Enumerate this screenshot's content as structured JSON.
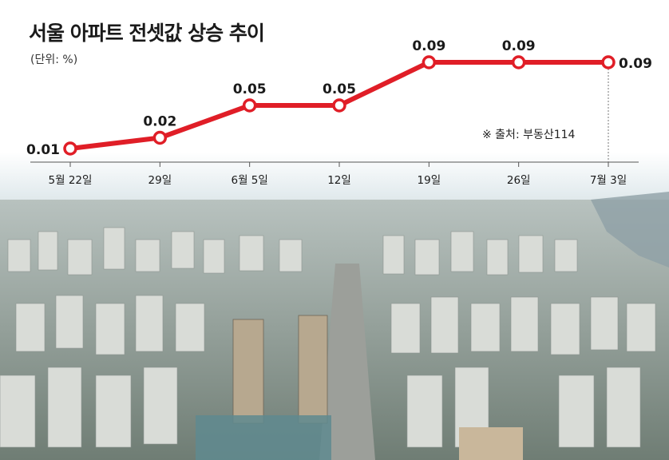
{
  "title": "서울 아파트 전셋값 상승 추이",
  "unit_note": "(단위: %)",
  "source": "※ 출처: 부동산114",
  "colors": {
    "line": "#e01e27",
    "marker_fill": "#ffffff",
    "sky": "#dfe8ee",
    "city": "#9aa8ad"
  },
  "chart_data": {
    "type": "line",
    "title": "서울 아파트 전셋값 상승 추이",
    "ylabel": "(단위: %)",
    "categories": [
      "5월 22일",
      "29일",
      "6월 5일",
      "12일",
      "19일",
      "26일",
      "7월 3일"
    ],
    "values": [
      0.01,
      0.02,
      0.05,
      0.05,
      0.09,
      0.09,
      0.09
    ],
    "value_labels": [
      "0.01",
      "0.02",
      "0.05",
      "0.05",
      "0.09",
      "0.09",
      "0.09"
    ],
    "ylim": [
      0,
      0.1
    ],
    "grid": false
  }
}
